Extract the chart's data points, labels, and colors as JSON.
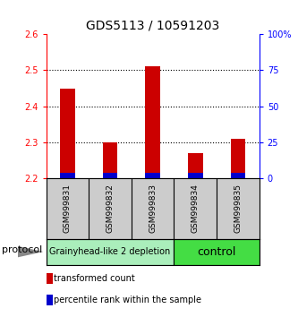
{
  "title": "GDS5113 / 10591203",
  "samples": [
    "GSM999831",
    "GSM999832",
    "GSM999833",
    "GSM999834",
    "GSM999835"
  ],
  "transformed_counts": [
    2.45,
    2.3,
    2.51,
    2.27,
    2.31
  ],
  "percentile_ranks_pct": [
    4,
    4,
    4,
    4,
    4
  ],
  "base": 2.2,
  "ylim_left": [
    2.2,
    2.6
  ],
  "ylim_right": [
    0,
    100
  ],
  "yticks_left": [
    2.2,
    2.3,
    2.4,
    2.5,
    2.6
  ],
  "yticks_right": [
    0,
    25,
    50,
    75,
    100
  ],
  "ytick_labels_right": [
    "0",
    "25",
    "50",
    "75",
    "100%"
  ],
  "grid_yticks": [
    2.3,
    2.4,
    2.5
  ],
  "groups": [
    {
      "label": "Grainyhead-like 2 depletion",
      "indices": [
        0,
        1,
        2
      ],
      "color": "#aaeebb",
      "text_size": 7
    },
    {
      "label": "control",
      "indices": [
        3,
        4
      ],
      "color": "#44dd44",
      "text_size": 9
    }
  ],
  "bar_width": 0.35,
  "red_color": "#cc0000",
  "blue_color": "#0000cc",
  "bg_color": "#cccccc",
  "protocol_label": "protocol",
  "legend_red": "transformed count",
  "legend_blue": "percentile rank within the sample",
  "title_fontsize": 10,
  "tick_fontsize": 7,
  "sample_fontsize": 6.5
}
